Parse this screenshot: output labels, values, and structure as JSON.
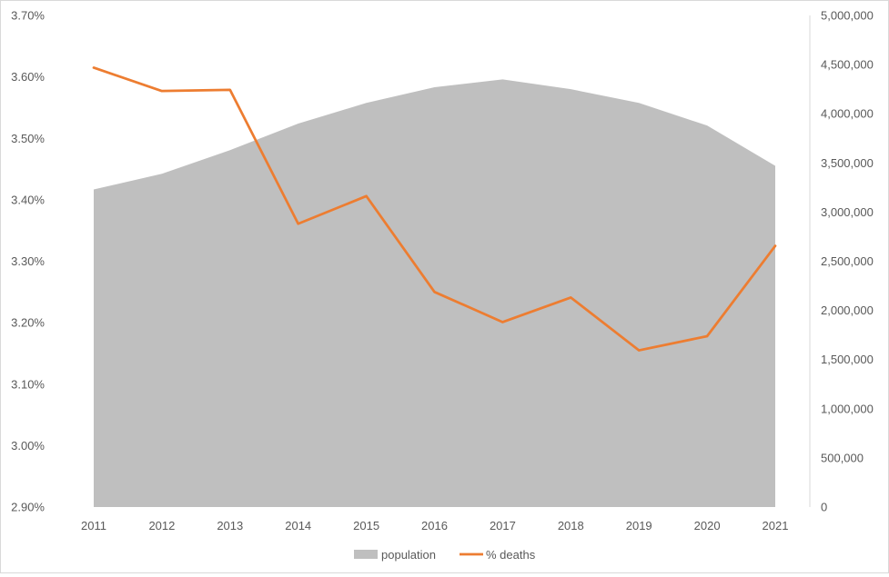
{
  "chart_data": {
    "type": "area+line",
    "title": "",
    "xlabel": "",
    "ylabel": "",
    "categories": [
      "2011",
      "2012",
      "2013",
      "2014",
      "2015",
      "2016",
      "2017",
      "2018",
      "2019",
      "2020",
      "2021"
    ],
    "series": [
      {
        "name": "population",
        "type": "area",
        "axis": "right",
        "color": "#bfbfbf",
        "values": [
          3230000,
          3390000,
          3630000,
          3900000,
          4110000,
          4270000,
          4350000,
          4250000,
          4110000,
          3880000,
          3470000
        ]
      },
      {
        "name": "% deaths",
        "type": "line",
        "axis": "left",
        "color": "#ed7d31",
        "values": [
          3.615,
          3.577,
          3.579,
          3.361,
          3.406,
          3.25,
          3.201,
          3.241,
          3.155,
          3.178,
          3.325
        ]
      }
    ],
    "y_left": {
      "min": 2.9,
      "max": 3.7,
      "step": 0.1,
      "ticks": [
        "2.90%",
        "3.00%",
        "3.10%",
        "3.20%",
        "3.30%",
        "3.40%",
        "3.50%",
        "3.60%",
        "3.70%"
      ]
    },
    "y_right": {
      "min": 0,
      "max": 5000000,
      "step": 500000,
      "ticks": [
        "0",
        "500,000",
        "1,000,000",
        "1,500,000",
        "2,000,000",
        "2,500,000",
        "3,000,000",
        "3,500,000",
        "4,000,000",
        "4,500,000",
        "5,000,000"
      ]
    },
    "grid": false,
    "legend_position": "bottom",
    "legend": [
      {
        "label": "population",
        "kind": "area",
        "color": "#bfbfbf"
      },
      {
        "label": "% deaths",
        "kind": "line",
        "color": "#ed7d31"
      }
    ]
  }
}
